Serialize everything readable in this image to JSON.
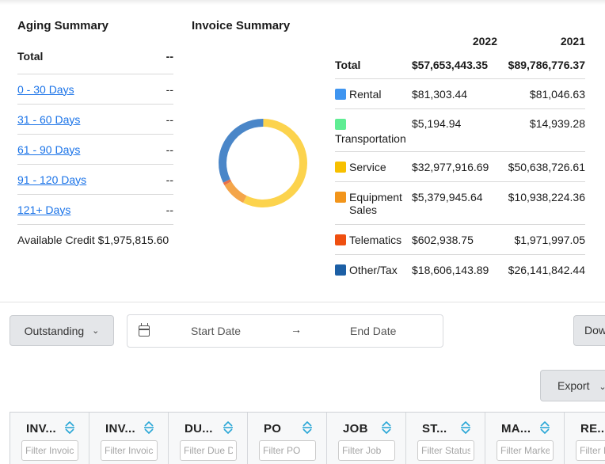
{
  "aging": {
    "title": "Aging Summary",
    "total_label": "Total",
    "total_value": "--",
    "buckets": [
      {
        "label": "0 - 30 Days",
        "value": "--"
      },
      {
        "label": "31 - 60 Days",
        "value": "--"
      },
      {
        "label": "61 - 90 Days",
        "value": "--"
      },
      {
        "label": "91 - 120 Days",
        "value": "--"
      },
      {
        "label": "121+ Days",
        "value": "--"
      }
    ],
    "available_credit": "Available Credit $1,975,815.60"
  },
  "invoice": {
    "title": "Invoice Summary",
    "year_a": "2022",
    "year_b": "2021",
    "total_label": "Total",
    "total_a": "$57,653,443.35",
    "total_b": "$89,786,776.37",
    "rows": [
      {
        "label": "Rental",
        "a": "$81,303.44",
        "b": "$81,046.63",
        "color": "#3f95f0"
      },
      {
        "label": "Transportation",
        "a": "$5,194.94",
        "b": "$14,939.28",
        "color": "#5fed93"
      },
      {
        "label": "Service",
        "a": "$32,977,916.69",
        "b": "$50,638,726.61",
        "color": "#f7c000"
      },
      {
        "label": "Equipment Sales",
        "a": "$5,379,945.64",
        "b": "$10,938,224.36",
        "color": "#f2951b"
      },
      {
        "label": "Telematics",
        "a": "$602,938.75",
        "b": "$1,971,997.05",
        "color": "#ef4f10"
      },
      {
        "label": "Other/Tax",
        "a": "$18,606,143.89",
        "b": "$26,141,842.44",
        "color": "#1c5fa5"
      }
    ]
  },
  "chart_data": {
    "type": "pie",
    "variant": "donut",
    "categories": [
      "Rental",
      "Transportation",
      "Service",
      "Equipment Sales",
      "Telematics",
      "Other/Tax"
    ],
    "values": [
      81303.44,
      5194.94,
      32977916.69,
      5379945.64,
      602938.75,
      18606143.89
    ],
    "colors": [
      "#4a86c8",
      "#8fd3a8",
      "#fcd34d",
      "#f4a54a",
      "#e8704a",
      "#4a86c8"
    ],
    "title": ""
  },
  "filters": {
    "status": "Outstanding",
    "start_placeholder": "Start Date",
    "end_placeholder": "End Date",
    "arrow": "→",
    "download_label": "Download",
    "export_label": "Export"
  },
  "grid": {
    "columns": [
      {
        "title": "INV...",
        "filter": "Filter Invoice"
      },
      {
        "title": "INV...",
        "filter": "Filter Invoice"
      },
      {
        "title": "DU...",
        "filter": "Filter Due Date"
      },
      {
        "title": "PO",
        "filter": "Filter PO"
      },
      {
        "title": "JOB",
        "filter": "Filter Job"
      },
      {
        "title": "ST...",
        "filter": "Filter Status"
      },
      {
        "title": "MA...",
        "filter": "Filter Market"
      },
      {
        "title": "RE...",
        "filter": "Filter Re"
      }
    ]
  }
}
